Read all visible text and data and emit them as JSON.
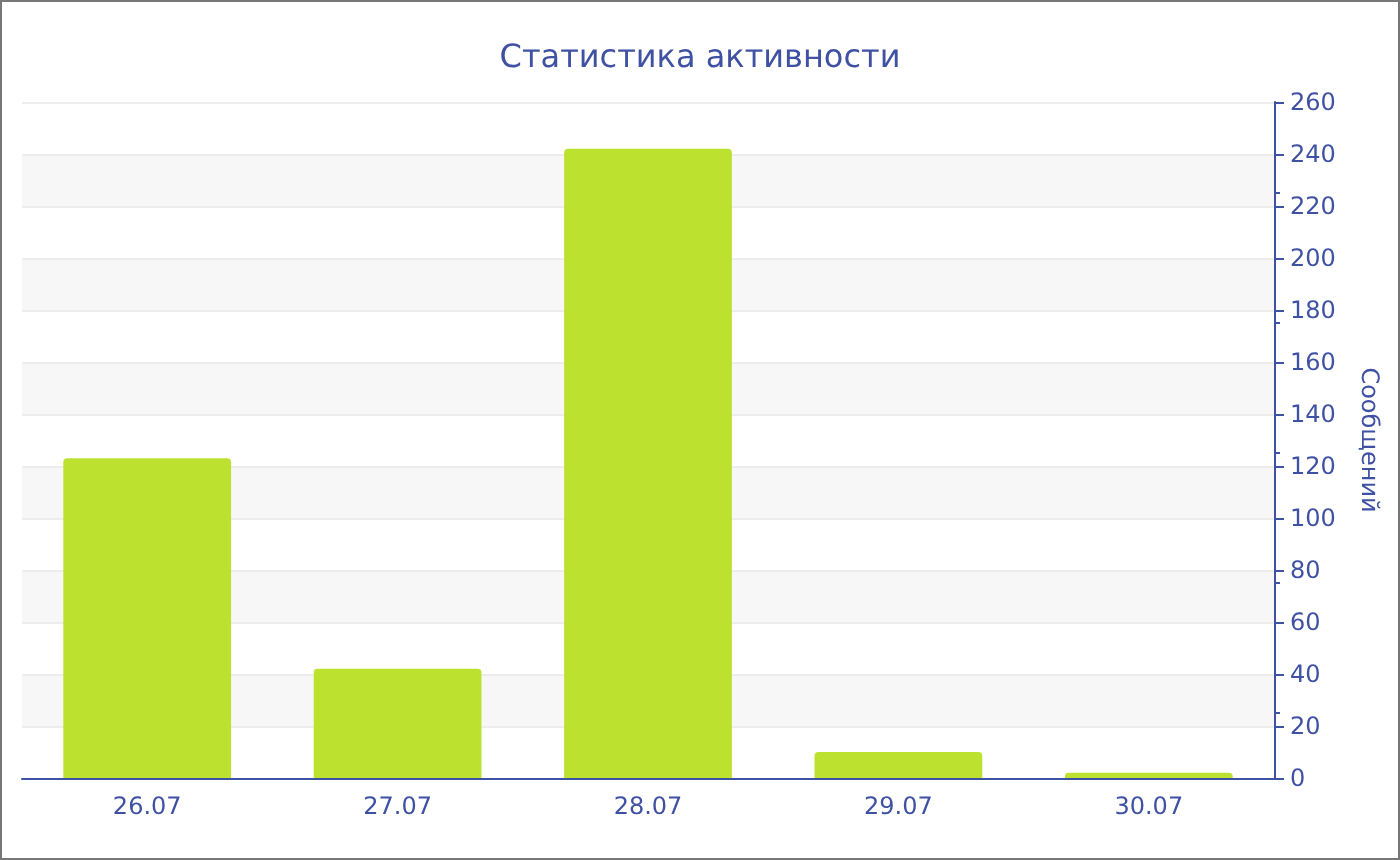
{
  "chart_data": {
    "type": "bar",
    "title": "Статистика активности",
    "y2label": "Сообщений",
    "categories": [
      "26.07",
      "27.07",
      "28.07",
      "29.07",
      "30.07"
    ],
    "series": [
      {
        "color": "#bce22f",
        "axis": "y2",
        "values": [
          123,
          42,
          242,
          10,
          2
        ]
      }
    ],
    "y2lim": [
      0,
      260
    ],
    "y2ticks": [
      0,
      20,
      40,
      60,
      80,
      100,
      120,
      140,
      160,
      180,
      200,
      220,
      240,
      260
    ],
    "grid": "y"
  }
}
